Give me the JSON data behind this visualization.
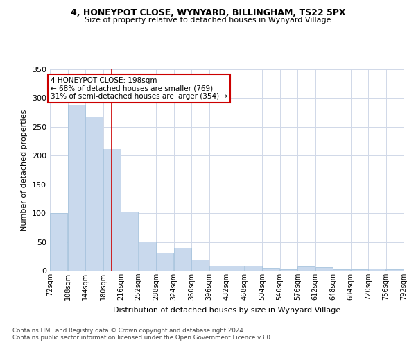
{
  "title1": "4, HONEYPOT CLOSE, WYNYARD, BILLINGHAM, TS22 5PX",
  "title2": "Size of property relative to detached houses in Wynyard Village",
  "xlabel": "Distribution of detached houses by size in Wynyard Village",
  "ylabel": "Number of detached properties",
  "footnote1": "Contains HM Land Registry data © Crown copyright and database right 2024.",
  "footnote2": "Contains public sector information licensed under the Open Government Licence v3.0.",
  "annotation_line1": "4 HONEYPOT CLOSE: 198sqm",
  "annotation_line2": "← 68% of detached houses are smaller (769)",
  "annotation_line3": "31% of semi-detached houses are larger (354) →",
  "subject_value": 198,
  "bar_color": "#c9d9ed",
  "bar_edge_color": "#a8c4de",
  "vline_color": "#cc0000",
  "annotation_box_edge_color": "#cc0000",
  "bins": [
    72,
    108,
    144,
    180,
    216,
    252,
    288,
    324,
    360,
    396,
    432,
    468,
    504,
    540,
    576,
    612,
    648,
    684,
    720,
    756,
    792
  ],
  "bin_labels": [
    "72sqm",
    "108sqm",
    "144sqm",
    "180sqm",
    "216sqm",
    "252sqm",
    "288sqm",
    "324sqm",
    "360sqm",
    "396sqm",
    "432sqm",
    "468sqm",
    "504sqm",
    "540sqm",
    "576sqm",
    "612sqm",
    "648sqm",
    "684sqm",
    "720sqm",
    "756sqm",
    "792sqm"
  ],
  "values": [
    100,
    288,
    268,
    212,
    102,
    51,
    31,
    40,
    19,
    8,
    8,
    9,
    5,
    3,
    7,
    6,
    2,
    3,
    4,
    3
  ],
  "ylim": [
    0,
    350
  ],
  "yticks": [
    0,
    50,
    100,
    150,
    200,
    250,
    300,
    350
  ],
  "background_color": "#ffffff",
  "grid_color": "#d0d8e8"
}
